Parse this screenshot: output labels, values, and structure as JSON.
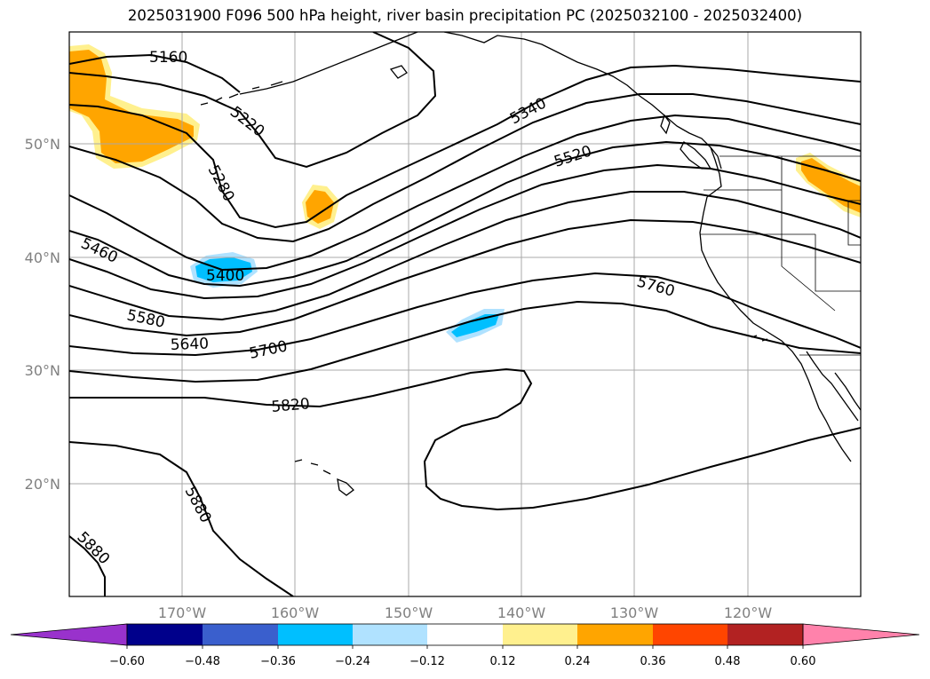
{
  "title": "2025031900 F096 500 hPa height, river basin precipitation PC (2025032100 - 2025032400)",
  "lat_labels": [
    "50°N",
    "40°N",
    "30°N",
    "20°N"
  ],
  "lon_labels": [
    "170°W",
    "160°W",
    "150°W",
    "140°W",
    "130°W",
    "120°W"
  ],
  "contour_labels": [
    "5160",
    "5220",
    "5280",
    "5340",
    "5400",
    "5460",
    "5520",
    "5580",
    "5640",
    "5700",
    "5760",
    "5820",
    "5880",
    "5880"
  ],
  "colorbar": {
    "colors": [
      "#9932cc",
      "#00008b",
      "#3a5fcd",
      "#00bfff",
      "#b0e2ff",
      "#ffffff",
      "#fff08e",
      "#ffa500",
      "#ff4500",
      "#b22222",
      "#ff82ab"
    ],
    "ticks": [
      "−0.60",
      "−0.48",
      "−0.36",
      "−0.24",
      "−0.12",
      "0.12",
      "0.24",
      "0.36",
      "0.48",
      "0.60"
    ]
  },
  "shading_colors": {
    "pos_light": "#fff08e",
    "pos": "#ffa500",
    "neg_light": "#b0e2ff",
    "neg": "#00bfff"
  }
}
